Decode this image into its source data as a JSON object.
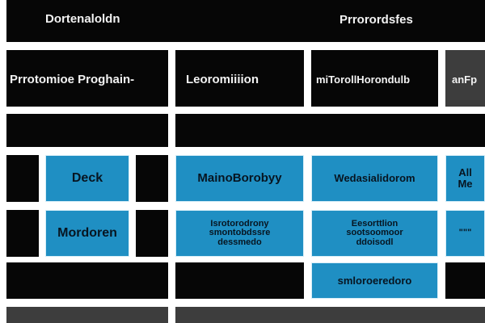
{
  "top_bar": {
    "left_label": "Dortenaloldn",
    "right_label": "Prrorordsfes"
  },
  "header_row": {
    "cells": [
      "Prrotomioe Proghain-",
      "Leoromiiiion",
      "miTorollHorondulb",
      "anFp"
    ]
  },
  "blue_cells": {
    "left_top": "Deck",
    "left_bottom": "Mordoren",
    "middle_top": "MainoBorobyy",
    "middle_bottom": "Isrotorodrony\nsmontobdssre\ndessmedo",
    "right_top": "Wedasialidorom",
    "right_bottom": "Eesorttlion\nsootsoomoor\nddoisodl",
    "far_right_top": "All\nMe",
    "far_right_bottom": "\"\"\"",
    "bottom_strip": "smloroeredoro"
  },
  "colors": {
    "black": "#060606",
    "grey": "#3d3d3d",
    "blue": "#1f8fc3",
    "white": "#ffffff"
  }
}
